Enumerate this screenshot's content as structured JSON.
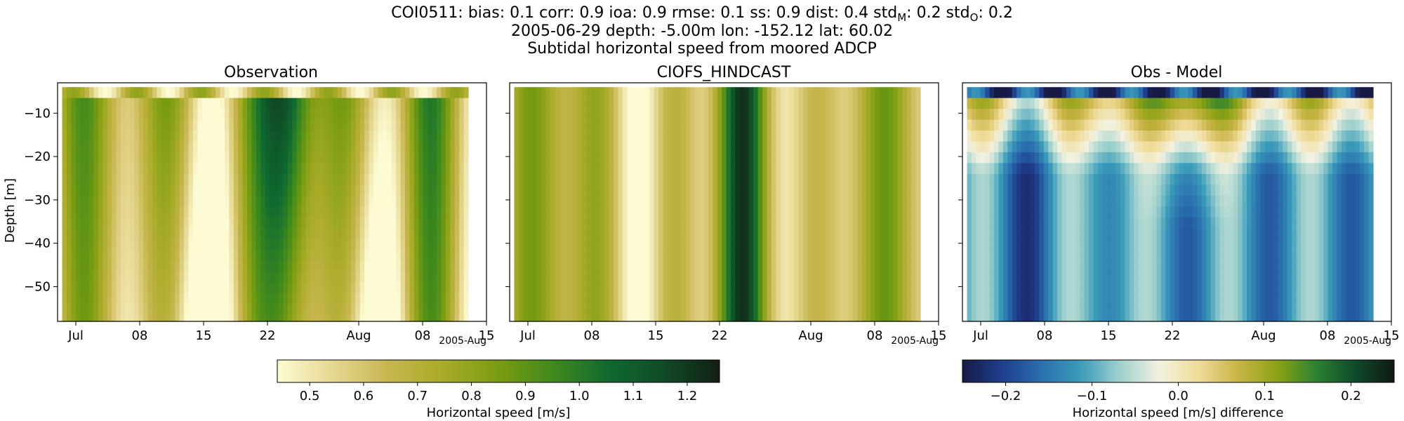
{
  "figure": {
    "title_line1": "COI0511: bias: 0.1  corr: 0.9  ioa: 0.9  rmse: 0.1  ss: 0.9  dist: 0.4  std",
    "title_line1_sub_m": "M",
    "title_line1_mid": ": 0.2  std",
    "title_line1_sub_o": "O",
    "title_line1_end": ": 0.2",
    "title_line2": "2005-06-29 depth: -5.00m lon: -152.12 lat: 60.02",
    "title_line3": "Subtidal horizontal speed from moored ADCP"
  },
  "chart_data": [
    {
      "type": "heatmap",
      "title": "Observation",
      "xlabel": "",
      "ylabel": "Depth [m]",
      "x_ticks": [
        "Jul",
        "08",
        "15",
        "22",
        "Aug",
        "08",
        "15"
      ],
      "x_offset_label": "2005-Aug",
      "y_ticks": [
        "−10",
        "−20",
        "−30",
        "−40",
        "−50"
      ],
      "xlim": [
        "2005-06-29",
        "2005-08-15"
      ],
      "ylim": [
        -58,
        -3
      ],
      "colormap": "speed",
      "value_range": [
        0.44,
        1.26
      ]
    },
    {
      "type": "heatmap",
      "title": "CIOFS_HINDCAST",
      "xlabel": "",
      "ylabel": "",
      "x_ticks": [
        "Jul",
        "08",
        "15",
        "22",
        "Aug",
        "08",
        "15"
      ],
      "x_offset_label": "2005-Aug",
      "xlim": [
        "2005-06-29",
        "2005-08-15"
      ],
      "ylim": [
        -58,
        -3
      ],
      "colormap": "speed",
      "value_range": [
        0.44,
        1.26
      ]
    },
    {
      "type": "heatmap",
      "title": "Obs - Model",
      "xlabel": "",
      "ylabel": "",
      "x_ticks": [
        "Jul",
        "08",
        "15",
        "22",
        "Aug",
        "08",
        "15"
      ],
      "x_offset_label": "2005-Aug",
      "xlim": [
        "2005-06-29",
        "2005-08-15"
      ],
      "ylim": [
        -58,
        -3
      ],
      "colormap": "diff",
      "value_range": [
        -0.25,
        0.25
      ]
    }
  ],
  "colorbars": [
    {
      "label": "Horizontal speed [m/s]",
      "ticks": [
        "0.5",
        "0.6",
        "0.7",
        "0.8",
        "0.9",
        "1.0",
        "1.1",
        "1.2"
      ],
      "tick_values": [
        0.5,
        0.6,
        0.7,
        0.8,
        0.9,
        1.0,
        1.1,
        1.2
      ],
      "range": [
        0.44,
        1.26
      ],
      "colors": [
        "#fdfbd3",
        "#e6d791",
        "#c7b64f",
        "#a8ab27",
        "#7a9c12",
        "#3f8a1d",
        "#0f6a30",
        "#104a26",
        "#141f12"
      ]
    },
    {
      "label": "Horizontal speed [m/s] difference",
      "ticks": [
        "−0.2",
        "−0.1",
        "0.0",
        "0.1",
        "0.2"
      ],
      "tick_values": [
        -0.2,
        -0.1,
        0.0,
        0.1,
        0.2
      ],
      "range": [
        -0.25,
        0.25
      ],
      "colors": [
        "#171a45",
        "#1f3d8e",
        "#2a6fae",
        "#3a9bb9",
        "#9ed0ce",
        "#f3f2e0",
        "#f0dc9a",
        "#c9b447",
        "#8fa313",
        "#2c8231",
        "#0f4b2a",
        "#101a12"
      ]
    }
  ]
}
